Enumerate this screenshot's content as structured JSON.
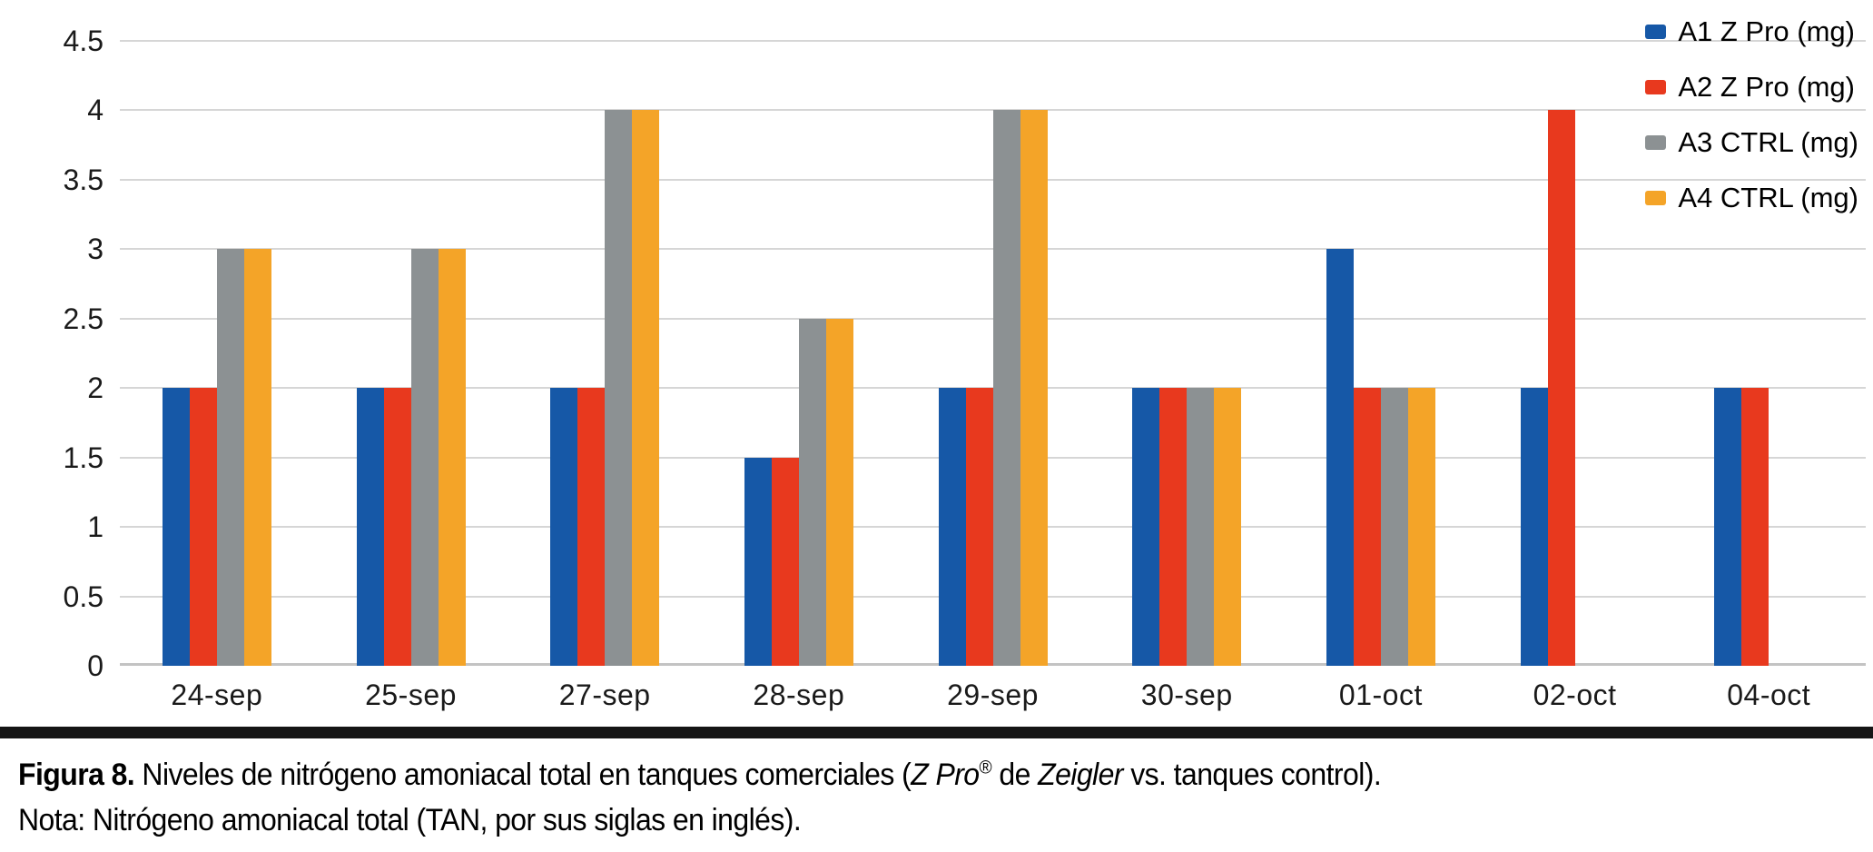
{
  "chart_data": {
    "type": "bar",
    "title": "",
    "xlabel": "",
    "ylabel": "",
    "categories": [
      "24-sep",
      "25-sep",
      "27-sep",
      "28-sep",
      "29-sep",
      "30-sep",
      "01-oct",
      "02-oct",
      "04-oct"
    ],
    "series": [
      {
        "name": "A1 Z Pro (mg)",
        "color": "#1658A7",
        "values": [
          2,
          2,
          2,
          1.5,
          2,
          2,
          3,
          2,
          2
        ]
      },
      {
        "name": "A2 Z Pro (mg)",
        "color": "#E8391E",
        "values": [
          2,
          2,
          2,
          1.5,
          2,
          2,
          2,
          4,
          2
        ]
      },
      {
        "name": "A3 CTRL (mg)",
        "color": "#8C9193",
        "values": [
          3,
          3,
          4,
          2.5,
          4,
          2,
          2,
          null,
          null
        ]
      },
      {
        "name": "A4 CTRL (mg)",
        "color": "#F4A428",
        "values": [
          3,
          3,
          4,
          2.5,
          4,
          2,
          2,
          null,
          null
        ]
      }
    ],
    "ylim": [
      0,
      4.5
    ],
    "ytick_step": 0.5,
    "yticks": [
      "4.5",
      "4",
      "3.5",
      "3",
      "2.5",
      "2",
      "1.5",
      "1",
      "0.5",
      "0"
    ],
    "grid": true,
    "gridline_color": "#d6d6d6",
    "legend_position": "top-right"
  },
  "caption": {
    "figure_label": "Figura 8.",
    "line1_part1": " Niveles de nitrógeno amoniacal total en tanques comerciales (",
    "zpro": "Z Pro",
    "registered": "®",
    "de": " de ",
    "zeigler": "Zeigler",
    "line1_part2": " vs. tanques control).",
    "note": "Nota: Nitrógeno amoniacal total (TAN, por sus siglas en inglés)."
  }
}
